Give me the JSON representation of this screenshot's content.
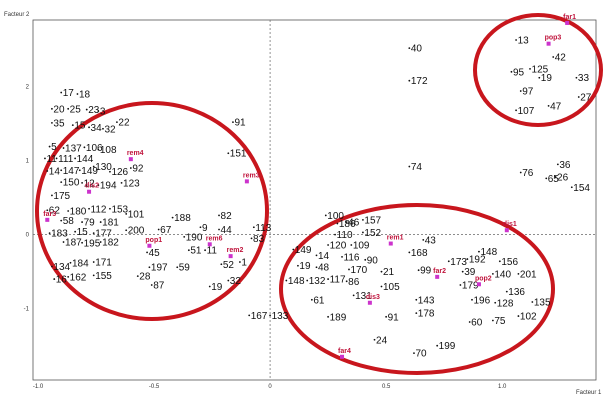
{
  "chart_data": {
    "type": "scatter",
    "xlabel": "Facteur 1",
    "ylabel": "Facteur 2",
    "xlim": [
      -1.0,
      1.4
    ],
    "ylim": [
      -1.95,
      2.9
    ],
    "x_ticks": [
      {
        "v": -1.0,
        "t": "-1.0"
      },
      {
        "v": -0.5,
        "t": "-0.5"
      },
      {
        "v": 0.0,
        "t": "0"
      },
      {
        "v": 0.5,
        "t": "0.5"
      },
      {
        "v": 1.0,
        "t": "1.0"
      }
    ],
    "y_ticks": [
      {
        "v": 2,
        "t": "2"
      },
      {
        "v": 1,
        "t": "1"
      },
      {
        "v": 0,
        "t": "0"
      },
      {
        "v": -1,
        "t": "-1"
      }
    ],
    "colors": {
      "points": "#111111",
      "modalities": "#c0143c",
      "modality_markers": "#cc33cc",
      "ellipses": "#c8161d"
    },
    "points": [
      {
        "l": "17",
        "x": -0.9,
        "y": 1.92
      },
      {
        "l": "18",
        "x": -0.83,
        "y": 1.9
      },
      {
        "l": "20",
        "x": -0.94,
        "y": 1.7
      },
      {
        "l": "25",
        "x": -0.87,
        "y": 1.7
      },
      {
        "l": "23",
        "x": -0.79,
        "y": 1.69
      },
      {
        "l": "3",
        "x": -0.74,
        "y": 1.67
      },
      {
        "l": "22",
        "x": -0.66,
        "y": 1.52
      },
      {
        "l": "35",
        "x": -0.94,
        "y": 1.51
      },
      {
        "l": "15",
        "x": -0.85,
        "y": 1.48
      },
      {
        "l": "34",
        "x": -0.78,
        "y": 1.45
      },
      {
        "l": "32",
        "x": -0.72,
        "y": 1.43
      },
      {
        "l": "91",
        "x": -0.16,
        "y": 1.52
      },
      {
        "l": "5",
        "x": -0.95,
        "y": 1.19
      },
      {
        "l": "137",
        "x": -0.89,
        "y": 1.17
      },
      {
        "l": "106",
        "x": -0.8,
        "y": 1.18
      },
      {
        "l": "108",
        "x": -0.74,
        "y": 1.15
      },
      {
        "l": "151",
        "x": -0.18,
        "y": 1.1
      },
      {
        "l": "11",
        "x": -0.97,
        "y": 1.03
      },
      {
        "l": "111",
        "x": -0.92,
        "y": 1.03
      },
      {
        "l": "144",
        "x": -0.84,
        "y": 1.03
      },
      {
        "l": "14",
        "x": -0.96,
        "y": 0.86
      },
      {
        "l": "147",
        "x": -0.9,
        "y": 0.87
      },
      {
        "l": "149",
        "x": -0.82,
        "y": 0.87
      },
      {
        "l": "130",
        "x": -0.76,
        "y": 0.92
      },
      {
        "l": "126",
        "x": -0.69,
        "y": 0.85
      },
      {
        "l": "92",
        "x": -0.6,
        "y": 0.9
      },
      {
        "l": "150",
        "x": -0.9,
        "y": 0.71
      },
      {
        "l": "12",
        "x": -0.81,
        "y": 0.7
      },
      {
        "l": "194",
        "x": -0.74,
        "y": 0.67
      },
      {
        "l": "123",
        "x": -0.64,
        "y": 0.7
      },
      {
        "l": "175",
        "x": -0.94,
        "y": 0.53
      },
      {
        "l": "62",
        "x": -0.96,
        "y": 0.33
      },
      {
        "l": "180",
        "x": -0.87,
        "y": 0.32
      },
      {
        "l": "112",
        "x": -0.78,
        "y": 0.35
      },
      {
        "l": "153",
        "x": -0.69,
        "y": 0.35
      },
      {
        "l": "101",
        "x": -0.62,
        "y": 0.28
      },
      {
        "l": "58",
        "x": -0.9,
        "y": 0.19
      },
      {
        "l": "79",
        "x": -0.81,
        "y": 0.17
      },
      {
        "l": "181",
        "x": -0.73,
        "y": 0.17
      },
      {
        "l": "183",
        "x": -0.95,
        "y": 0.02
      },
      {
        "l": "15",
        "x": -0.84,
        "y": 0.04
      },
      {
        "l": "177",
        "x": -0.76,
        "y": 0.02
      },
      {
        "l": "200",
        "x": -0.62,
        "y": 0.06
      },
      {
        "l": "187",
        "x": -0.89,
        "y": -0.1
      },
      {
        "l": "195",
        "x": -0.81,
        "y": -0.11
      },
      {
        "l": "182",
        "x": -0.73,
        "y": -0.1
      },
      {
        "l": "188",
        "x": -0.42,
        "y": 0.23
      },
      {
        "l": "82",
        "x": -0.22,
        "y": 0.26
      },
      {
        "l": "67",
        "x": -0.48,
        "y": 0.07
      },
      {
        "l": "9",
        "x": -0.3,
        "y": 0.1
      },
      {
        "l": "44",
        "x": -0.22,
        "y": 0.07
      },
      {
        "l": "113",
        "x": -0.07,
        "y": 0.1
      },
      {
        "l": "190",
        "x": -0.37,
        "y": -0.03
      },
      {
        "l": "83",
        "x": -0.08,
        "y": -0.05
      },
      {
        "l": "45",
        "x": -0.53,
        "y": -0.24
      },
      {
        "l": "51",
        "x": -0.35,
        "y": -0.21
      },
      {
        "l": "11",
        "x": -0.28,
        "y": -0.21
      },
      {
        "l": "134",
        "x": -0.94,
        "y": -0.43
      },
      {
        "l": "184",
        "x": -0.86,
        "y": -0.38
      },
      {
        "l": "171",
        "x": -0.76,
        "y": -0.37
      },
      {
        "l": "197",
        "x": -0.52,
        "y": -0.44
      },
      {
        "l": "59",
        "x": -0.4,
        "y": -0.44
      },
      {
        "l": "52",
        "x": -0.21,
        "y": -0.4
      },
      {
        "l": "1",
        "x": -0.13,
        "y": -0.37
      },
      {
        "l": "16",
        "x": -0.93,
        "y": -0.6
      },
      {
        "l": "162",
        "x": -0.87,
        "y": -0.57
      },
      {
        "l": "155",
        "x": -0.76,
        "y": -0.55
      },
      {
        "l": "28",
        "x": -0.57,
        "y": -0.56
      },
      {
        "l": "87",
        "x": -0.51,
        "y": -0.68
      },
      {
        "l": "19",
        "x": -0.26,
        "y": -0.7
      },
      {
        "l": "32",
        "x": -0.18,
        "y": -0.62
      },
      {
        "l": "167",
        "x": -0.09,
        "y": -1.09
      },
      {
        "l": "133",
        "x": 0.0,
        "y": -1.09
      },
      {
        "l": "13",
        "x": 1.06,
        "y": 2.63
      },
      {
        "l": "42",
        "x": 1.22,
        "y": 2.4
      },
      {
        "l": "95",
        "x": 1.04,
        "y": 2.2
      },
      {
        "l": "125",
        "x": 1.12,
        "y": 2.24
      },
      {
        "l": "19",
        "x": 1.16,
        "y": 2.12
      },
      {
        "l": "33",
        "x": 1.32,
        "y": 2.12
      },
      {
        "l": "97",
        "x": 1.08,
        "y": 1.94
      },
      {
        "l": "27",
        "x": 1.33,
        "y": 1.86
      },
      {
        "l": "107",
        "x": 1.06,
        "y": 1.68
      },
      {
        "l": "47",
        "x": 1.2,
        "y": 1.74
      },
      {
        "l": "40",
        "x": 0.6,
        "y": 2.52
      },
      {
        "l": "172",
        "x": 0.6,
        "y": 2.08
      },
      {
        "l": "74",
        "x": 0.6,
        "y": 0.92
      },
      {
        "l": "36",
        "x": 1.24,
        "y": 0.95
      },
      {
        "l": "76",
        "x": 1.08,
        "y": 0.84
      },
      {
        "l": "65",
        "x": 1.19,
        "y": 0.76
      },
      {
        "l": "26",
        "x": 1.23,
        "y": 0.78
      },
      {
        "l": "154",
        "x": 1.3,
        "y": 0.64
      },
      {
        "l": "100",
        "x": 0.24,
        "y": 0.26
      },
      {
        "l": "186",
        "x": 0.29,
        "y": 0.15
      },
      {
        "l": "46",
        "x": 0.33,
        "y": 0.17
      },
      {
        "l": "157",
        "x": 0.4,
        "y": 0.2
      },
      {
        "l": "110",
        "x": 0.28,
        "y": 0.0
      },
      {
        "l": "152",
        "x": 0.4,
        "y": 0.03
      },
      {
        "l": "43",
        "x": 0.66,
        "y": -0.07
      },
      {
        "l": "120",
        "x": 0.25,
        "y": -0.14
      },
      {
        "l": "109",
        "x": 0.35,
        "y": -0.14
      },
      {
        "l": "149",
        "x": 0.1,
        "y": -0.2
      },
      {
        "l": "14",
        "x": 0.2,
        "y": -0.28
      },
      {
        "l": "116",
        "x": 0.31,
        "y": -0.3
      },
      {
        "l": "90",
        "x": 0.41,
        "y": -0.34
      },
      {
        "l": "168",
        "x": 0.6,
        "y": -0.24
      },
      {
        "l": "148",
        "x": 0.9,
        "y": -0.23
      },
      {
        "l": "173",
        "x": 0.77,
        "y": -0.36
      },
      {
        "l": "192",
        "x": 0.85,
        "y": -0.33
      },
      {
        "l": "156",
        "x": 0.99,
        "y": -0.36
      },
      {
        "l": "19",
        "x": 0.12,
        "y": -0.42
      },
      {
        "l": "48",
        "x": 0.2,
        "y": -0.44
      },
      {
        "l": "170",
        "x": 0.34,
        "y": -0.47
      },
      {
        "l": "21",
        "x": 0.48,
        "y": -0.5
      },
      {
        "l": "99",
        "x": 0.64,
        "y": -0.48
      },
      {
        "l": "39",
        "x": 0.83,
        "y": -0.5
      },
      {
        "l": "140",
        "x": 0.96,
        "y": -0.53
      },
      {
        "l": "201",
        "x": 1.07,
        "y": -0.53
      },
      {
        "l": "148",
        "x": 0.07,
        "y": -0.62
      },
      {
        "l": "132",
        "x": 0.16,
        "y": -0.62
      },
      {
        "l": "117",
        "x": 0.25,
        "y": -0.6
      },
      {
        "l": "86",
        "x": 0.33,
        "y": -0.63
      },
      {
        "l": "105",
        "x": 0.48,
        "y": -0.7
      },
      {
        "l": "179",
        "x": 0.82,
        "y": -0.68
      },
      {
        "l": "136",
        "x": 1.02,
        "y": -0.77
      },
      {
        "l": "131",
        "x": 0.36,
        "y": -0.82
      },
      {
        "l": "143",
        "x": 0.63,
        "y": -0.88
      },
      {
        "l": "196",
        "x": 0.87,
        "y": -0.88
      },
      {
        "l": "128",
        "x": 0.97,
        "y": -0.92
      },
      {
        "l": "135",
        "x": 1.13,
        "y": -0.91
      },
      {
        "l": "61",
        "x": 0.18,
        "y": -0.88
      },
      {
        "l": "189",
        "x": 0.25,
        "y": -1.11
      },
      {
        "l": "91",
        "x": 0.5,
        "y": -1.11
      },
      {
        "l": "178",
        "x": 0.63,
        "y": -1.06
      },
      {
        "l": "60",
        "x": 0.86,
        "y": -1.18
      },
      {
        "l": "75",
        "x": 0.96,
        "y": -1.16
      },
      {
        "l": "102",
        "x": 1.07,
        "y": -1.1
      },
      {
        "l": "24",
        "x": 0.45,
        "y": -1.42
      },
      {
        "l": "199",
        "x": 0.72,
        "y": -1.5
      },
      {
        "l": "70",
        "x": 0.62,
        "y": -1.6
      }
    ],
    "modalities": [
      {
        "l": "far1",
        "x": 1.28,
        "y": 2.86
      },
      {
        "l": "pop3",
        "x": 1.2,
        "y": 2.58
      },
      {
        "l": "rem4",
        "x": -0.6,
        "y": 1.02
      },
      {
        "l": "dis2",
        "x": -0.78,
        "y": 0.58
      },
      {
        "l": "rem3",
        "x": -0.1,
        "y": 0.72
      },
      {
        "l": "far3",
        "x": -0.96,
        "y": 0.2
      },
      {
        "l": "pop1",
        "x": -0.52,
        "y": -0.15
      },
      {
        "l": "rem6",
        "x": -0.26,
        "y": -0.13
      },
      {
        "l": "rem2",
        "x": -0.17,
        "y": -0.29
      },
      {
        "l": "rem1",
        "x": 0.52,
        "y": -0.12
      },
      {
        "l": "far2",
        "x": 0.72,
        "y": -0.57
      },
      {
        "l": "pop2",
        "x": 0.9,
        "y": -0.67
      },
      {
        "l": "dis1",
        "x": 1.02,
        "y": 0.06
      },
      {
        "l": "dis3",
        "x": 0.43,
        "y": -0.92
      },
      {
        "l": "far4",
        "x": 0.31,
        "y": -1.65
      }
    ]
  }
}
